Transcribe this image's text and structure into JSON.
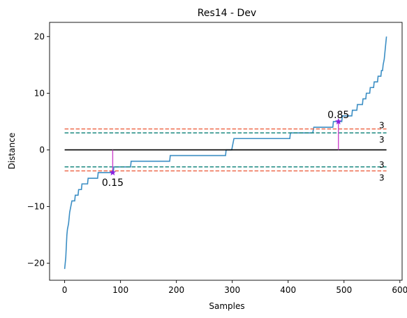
{
  "chart_data": {
    "type": "line",
    "title": "Res14 - Dev",
    "xlabel": "Samples",
    "ylabel": "Distance",
    "xlim": [
      -27,
      604
    ],
    "ylim": [
      -23,
      22.5
    ],
    "xticks": [
      0,
      100,
      200,
      300,
      400,
      500,
      600
    ],
    "yticks": [
      -20,
      -10,
      0,
      10,
      20
    ],
    "grid": false,
    "series": [
      {
        "color": "#3b8ec4",
        "points": [
          [
            0,
            -21
          ],
          [
            2,
            -19
          ],
          [
            3,
            -17
          ],
          [
            4,
            -15
          ],
          [
            5,
            -14
          ],
          [
            7,
            -13
          ],
          [
            8,
            -12
          ],
          [
            9,
            -11
          ],
          [
            11,
            -10
          ],
          [
            13,
            -9
          ],
          [
            18,
            -9
          ],
          [
            19,
            -8
          ],
          [
            24,
            -8
          ],
          [
            25,
            -7
          ],
          [
            30,
            -7
          ],
          [
            31,
            -6
          ],
          [
            41,
            -6
          ],
          [
            42,
            -5
          ],
          [
            59,
            -5
          ],
          [
            60,
            -4
          ],
          [
            75,
            -4
          ],
          [
            87,
            -4
          ],
          [
            88,
            -3
          ],
          [
            118,
            -3
          ],
          [
            119,
            -2
          ],
          [
            188,
            -2
          ],
          [
            189,
            -1
          ],
          [
            288,
            -1
          ],
          [
            289,
            0
          ],
          [
            299,
            0
          ],
          [
            301,
            1
          ],
          [
            303,
            2
          ],
          [
            403,
            2
          ],
          [
            404,
            3
          ],
          [
            444,
            3
          ],
          [
            446,
            4
          ],
          [
            480,
            4
          ],
          [
            481,
            5
          ],
          [
            496,
            5
          ],
          [
            497,
            6
          ],
          [
            514,
            6
          ],
          [
            515,
            7
          ],
          [
            523,
            7
          ],
          [
            524,
            8
          ],
          [
            533,
            8
          ],
          [
            534,
            9
          ],
          [
            539,
            9
          ],
          [
            540,
            10
          ],
          [
            546,
            10
          ],
          [
            547,
            11
          ],
          [
            553,
            11
          ],
          [
            554,
            12
          ],
          [
            560,
            12
          ],
          [
            561,
            13
          ],
          [
            566,
            13
          ],
          [
            567,
            14
          ],
          [
            569,
            14
          ],
          [
            570,
            15
          ],
          [
            572,
            16
          ],
          [
            573,
            17
          ],
          [
            574,
            18
          ],
          [
            575,
            19
          ],
          [
            576,
            20
          ]
        ]
      }
    ],
    "hlines": [
      {
        "y": 0,
        "x_range": [
          0,
          576
        ],
        "color": "#000000",
        "style": "solid"
      },
      {
        "y": 3.7,
        "x_range": [
          0,
          576
        ],
        "color": "#ee6a4c",
        "style": "dashed",
        "label": "3"
      },
      {
        "y": 3,
        "x_range": [
          0,
          576
        ],
        "color": "#1c8a80",
        "style": "dashed",
        "label": "3"
      },
      {
        "y": -3,
        "x_range": [
          0,
          576
        ],
        "color": "#1c8a80",
        "style": "dashed",
        "label": "3"
      },
      {
        "y": -3.7,
        "x_range": [
          0,
          576
        ],
        "color": "#ee6a4c",
        "style": "dashed",
        "label": "3"
      }
    ],
    "markers": [
      {
        "x": 86,
        "y": -4,
        "label": "0.15",
        "color": "#8a1ee0",
        "stem_color": "#cc44cc"
      },
      {
        "x": 490,
        "y": 5,
        "label": "0.85",
        "color": "#8a1ee0",
        "stem_color": "#cc44cc"
      }
    ]
  }
}
